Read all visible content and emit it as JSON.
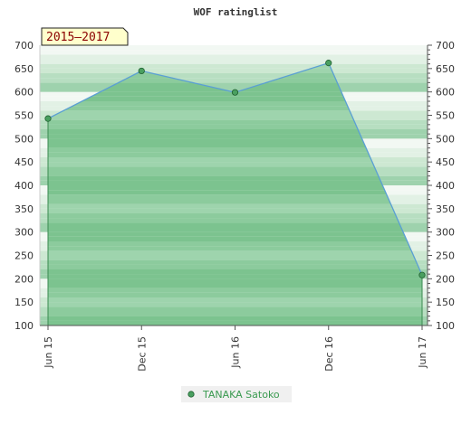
{
  "chart_data": {
    "type": "area",
    "title": "WOF ratinglist",
    "period_label": "2015–2017",
    "x_tick_labels": [
      "Jun 15",
      "Dec 15",
      "Jun 16",
      "Dec 16",
      "Jun 17"
    ],
    "y_ticks": [
      100,
      150,
      200,
      250,
      300,
      350,
      400,
      450,
      500,
      550,
      600,
      650,
      700
    ],
    "ylim": [
      100,
      700
    ],
    "series": [
      {
        "name": "TANAKA Satoko",
        "x": [
          "Jun 15",
          "Dec 15",
          "Jun 16",
          "Dec 16",
          "Jun 17"
        ],
        "values": [
          543,
          645,
          599,
          662,
          208
        ]
      }
    ],
    "legend_position": "bottom-center",
    "dual_y_axis": true,
    "colors": {
      "line": "#5a9fd4",
      "fill": "#7cc38f",
      "marker": "#4aa060",
      "period_box": "#ffffcc"
    }
  }
}
